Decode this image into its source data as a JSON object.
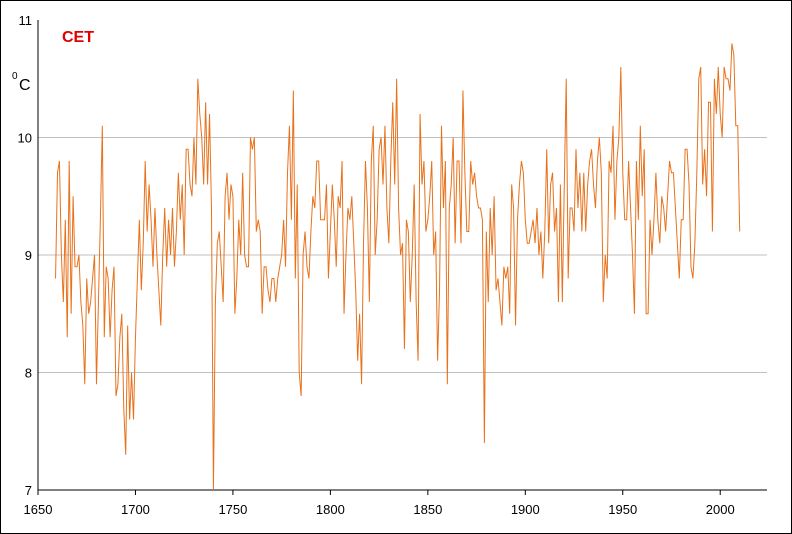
{
  "chart_data": {
    "type": "line",
    "title": "CET",
    "ylabel_degree": "0",
    "ylabel": "C",
    "x": [
      1659,
      1660,
      1661,
      1662,
      1663,
      1664,
      1665,
      1666,
      1667,
      1668,
      1669,
      1670,
      1671,
      1672,
      1673,
      1674,
      1675,
      1676,
      1677,
      1678,
      1679,
      1680,
      1681,
      1682,
      1683,
      1684,
      1685,
      1686,
      1687,
      1688,
      1689,
      1690,
      1691,
      1692,
      1693,
      1694,
      1695,
      1696,
      1697,
      1698,
      1699,
      1700,
      1701,
      1702,
      1703,
      1704,
      1705,
      1706,
      1707,
      1708,
      1709,
      1710,
      1711,
      1712,
      1713,
      1714,
      1715,
      1716,
      1717,
      1718,
      1719,
      1720,
      1721,
      1722,
      1723,
      1724,
      1725,
      1726,
      1727,
      1728,
      1729,
      1730,
      1731,
      1732,
      1733,
      1734,
      1735,
      1736,
      1737,
      1738,
      1739,
      1740,
      1741,
      1742,
      1743,
      1744,
      1745,
      1746,
      1747,
      1748,
      1749,
      1750,
      1751,
      1752,
      1753,
      1754,
      1755,
      1756,
      1757,
      1758,
      1759,
      1760,
      1761,
      1762,
      1763,
      1764,
      1765,
      1766,
      1767,
      1768,
      1769,
      1770,
      1771,
      1772,
      1773,
      1774,
      1775,
      1776,
      1777,
      1778,
      1779,
      1780,
      1781,
      1782,
      1783,
      1784,
      1785,
      1786,
      1787,
      1788,
      1789,
      1790,
      1791,
      1792,
      1793,
      1794,
      1795,
      1796,
      1797,
      1798,
      1799,
      1800,
      1801,
      1802,
      1803,
      1804,
      1805,
      1806,
      1807,
      1808,
      1809,
      1810,
      1811,
      1812,
      1813,
      1814,
      1815,
      1816,
      1817,
      1818,
      1819,
      1820,
      1821,
      1822,
      1823,
      1824,
      1825,
      1826,
      1827,
      1828,
      1829,
      1830,
      1831,
      1832,
      1833,
      1834,
      1835,
      1836,
      1837,
      1838,
      1839,
      1840,
      1841,
      1842,
      1843,
      1844,
      1845,
      1846,
      1847,
      1848,
      1849,
      1850,
      1851,
      1852,
      1853,
      1854,
      1855,
      1856,
      1857,
      1858,
      1859,
      1860,
      1861,
      1862,
      1863,
      1864,
      1865,
      1866,
      1867,
      1868,
      1869,
      1870,
      1871,
      1872,
      1873,
      1874,
      1875,
      1876,
      1877,
      1878,
      1879,
      1880,
      1881,
      1882,
      1883,
      1884,
      1885,
      1886,
      1887,
      1888,
      1889,
      1890,
      1891,
      1892,
      1893,
      1894,
      1895,
      1896,
      1897,
      1898,
      1899,
      1900,
      1901,
      1902,
      1903,
      1904,
      1905,
      1906,
      1907,
      1908,
      1909,
      1910,
      1911,
      1912,
      1913,
      1914,
      1915,
      1916,
      1917,
      1918,
      1919,
      1920,
      1921,
      1922,
      1923,
      1924,
      1925,
      1926,
      1927,
      1928,
      1929,
      1930,
      1931,
      1932,
      1933,
      1934,
      1935,
      1936,
      1937,
      1938,
      1939,
      1940,
      1941,
      1942,
      1943,
      1944,
      1945,
      1946,
      1947,
      1948,
      1949,
      1950,
      1951,
      1952,
      1953,
      1954,
      1955,
      1956,
      1957,
      1958,
      1959,
      1960,
      1961,
      1962,
      1963,
      1964,
      1965,
      1966,
      1967,
      1968,
      1969,
      1970,
      1971,
      1972,
      1973,
      1974,
      1975,
      1976,
      1977,
      1978,
      1979,
      1980,
      1981,
      1982,
      1983,
      1984,
      1985,
      1986,
      1987,
      1988,
      1989,
      1990,
      1991,
      1992,
      1993,
      1994,
      1995,
      1996,
      1997,
      1998,
      1999,
      2000,
      2001,
      2002,
      2003,
      2004,
      2005,
      2006,
      2007,
      2008,
      2009,
      2010
    ],
    "series": [
      {
        "color": "#e8721c",
        "values": [
          8.8,
          9.7,
          9.8,
          9.0,
          8.6,
          9.3,
          8.3,
          9.8,
          8.5,
          9.5,
          8.9,
          8.9,
          9.0,
          8.6,
          8.4,
          7.9,
          8.8,
          8.5,
          8.6,
          8.8,
          9.0,
          7.9,
          8.6,
          9.3,
          10.1,
          8.3,
          8.9,
          8.8,
          8.3,
          8.7,
          8.9,
          7.8,
          7.9,
          8.3,
          8.5,
          7.7,
          7.3,
          8.4,
          7.6,
          8.0,
          7.6,
          8.3,
          8.8,
          9.3,
          8.7,
          9.1,
          9.8,
          9.2,
          9.6,
          9.3,
          8.9,
          9.4,
          9.0,
          8.7,
          8.4,
          9.0,
          9.4,
          8.9,
          9.3,
          9.0,
          9.4,
          8.9,
          9.2,
          9.7,
          9.3,
          9.6,
          9.0,
          9.9,
          9.9,
          9.6,
          9.5,
          10.0,
          9.6,
          10.5,
          10.2,
          10.0,
          9.6,
          10.3,
          9.6,
          10.2,
          9.4,
          7.0,
          8.6,
          9.1,
          9.2,
          8.9,
          8.6,
          9.5,
          9.7,
          9.3,
          9.6,
          9.5,
          8.5,
          8.8,
          9.3,
          9.0,
          9.7,
          9.0,
          8.9,
          8.9,
          10.0,
          9.9,
          10.0,
          9.2,
          9.3,
          9.2,
          8.5,
          8.9,
          8.9,
          8.7,
          8.6,
          8.8,
          8.8,
          8.6,
          8.8,
          8.9,
          9.0,
          9.3,
          8.9,
          9.7,
          10.1,
          9.3,
          10.4,
          8.8,
          9.6,
          8.0,
          7.8,
          9.0,
          9.2,
          8.9,
          8.8,
          9.2,
          9.5,
          9.4,
          9.8,
          9.8,
          9.3,
          9.3,
          9.3,
          9.6,
          8.8,
          9.2,
          9.6,
          9.3,
          8.9,
          9.5,
          9.4,
          9.8,
          8.5,
          9.0,
          9.4,
          9.3,
          9.5,
          9.1,
          8.7,
          8.1,
          8.5,
          7.9,
          9.1,
          9.8,
          9.4,
          8.6,
          9.8,
          10.1,
          9.0,
          9.3,
          9.9,
          10.0,
          9.6,
          10.1,
          9.4,
          9.1,
          9.8,
          10.3,
          9.6,
          10.5,
          9.4,
          9.0,
          9.1,
          8.2,
          9.3,
          9.2,
          8.6,
          9.0,
          9.6,
          8.6,
          8.1,
          10.2,
          9.6,
          9.8,
          9.2,
          9.3,
          9.5,
          9.8,
          9.0,
          9.2,
          8.1,
          8.7,
          10.1,
          9.4,
          9.8,
          7.9,
          9.4,
          9.6,
          10.0,
          9.1,
          9.8,
          9.8,
          9.1,
          10.4,
          9.7,
          9.2,
          9.2,
          9.8,
          9.6,
          9.7,
          9.5,
          9.4,
          9.4,
          9.3,
          7.4,
          9.2,
          8.6,
          9.4,
          9.0,
          9.5,
          8.7,
          8.8,
          8.6,
          8.4,
          8.9,
          8.8,
          8.9,
          8.5,
          9.6,
          9.4,
          8.4,
          9.3,
          9.6,
          9.8,
          9.7,
          9.3,
          9.1,
          9.1,
          9.2,
          9.3,
          9.1,
          9.4,
          9.0,
          9.2,
          8.8,
          9.2,
          9.9,
          9.1,
          9.6,
          9.7,
          9.2,
          9.4,
          8.6,
          9.6,
          8.6,
          9.6,
          10.5,
          8.8,
          9.4,
          9.4,
          9.2,
          9.9,
          9.4,
          9.7,
          9.2,
          9.7,
          9.2,
          9.6,
          9.8,
          9.9,
          9.6,
          9.4,
          9.8,
          10.0,
          9.7,
          8.6,
          9.0,
          8.8,
          9.8,
          9.7,
          10.1,
          9.3,
          9.8,
          10.0,
          10.6,
          9.7,
          9.3,
          9.3,
          9.8,
          9.4,
          9.0,
          8.5,
          9.8,
          9.3,
          10.1,
          9.5,
          9.9,
          8.5,
          8.5,
          9.3,
          9.0,
          9.3,
          9.7,
          9.3,
          9.1,
          9.5,
          9.4,
          9.2,
          9.5,
          9.8,
          9.7,
          9.7,
          9.4,
          9.1,
          8.8,
          9.3,
          9.3,
          9.9,
          9.9,
          9.6,
          8.9,
          8.8,
          9.1,
          9.7,
          10.5,
          10.6,
          9.6,
          9.9,
          9.5,
          10.3,
          10.3,
          9.2,
          10.5,
          10.2,
          10.6,
          10.2,
          10.0,
          10.6,
          10.5,
          10.5,
          10.4,
          10.8,
          10.7,
          10.1,
          10.1,
          9.2
        ]
      }
    ],
    "xlim": [
      1650,
      2024
    ],
    "xticks": [
      1650,
      1700,
      1750,
      1800,
      1850,
      1900,
      1950,
      2000
    ],
    "ylim": [
      7,
      11
    ],
    "yticks": [
      7,
      8,
      9,
      10,
      11
    ],
    "grid": true
  }
}
